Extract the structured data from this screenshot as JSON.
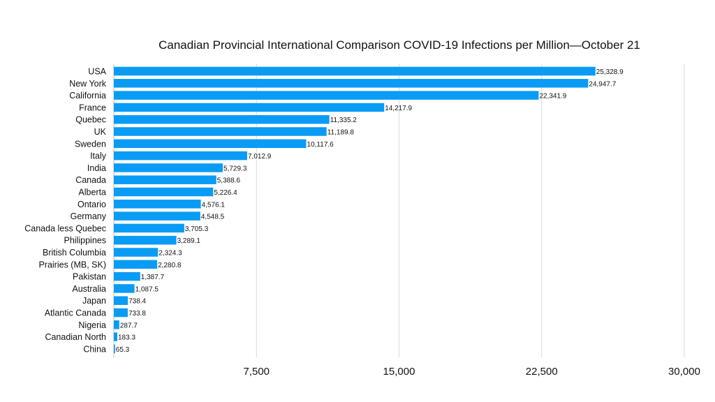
{
  "chart_data": {
    "type": "bar",
    "orientation": "horizontal",
    "title": "Canadian Provincial International Comparison COVID-19 Infections per Million—October 21",
    "xlabel": "",
    "ylabel": "",
    "xlim": [
      0,
      30000
    ],
    "xticks": [
      7500,
      15000,
      22500,
      30000
    ],
    "xtick_labels": [
      "7,500",
      "15,000",
      "22,500",
      "30,000"
    ],
    "grid": "vertical",
    "bar_color": "#0a9cf5",
    "categories": [
      "USA",
      "New York",
      "California",
      "France",
      "Quebec",
      "UK",
      "Sweden",
      "Italy",
      "India",
      "Canada",
      "Alberta",
      "Ontario",
      "Germany",
      "Canada less Quebec",
      "Philippines",
      "British Columbia",
      "Prairies (MB, SK)",
      "Pakistan",
      "Australia",
      "Japan",
      "Atlantic Canada",
      "Nigeria",
      "Canadian North",
      "China"
    ],
    "values": [
      25328.9,
      24947.7,
      22341.9,
      14217.9,
      11335.2,
      11189.8,
      10117.6,
      7012.9,
      5729.3,
      5388.6,
      5226.4,
      4576.1,
      4548.5,
      3705.3,
      3289.1,
      2324.3,
      2280.8,
      1387.7,
      1087.5,
      738.4,
      733.8,
      287.7,
      183.3,
      65.3
    ],
    "value_labels": [
      "25,328.9",
      "24,947.7",
      "22,341.9",
      "14,217.9",
      "11,335.2",
      "11,189.8",
      "10,117.6",
      "7,012.9",
      "5,729.3",
      "5,388.6",
      "5,226.4",
      "4,576.1",
      "4,548.5",
      "3,705.3",
      "3,289.1",
      "2,324.3",
      "2,280.8",
      "1,387.7",
      "1,087.5",
      "738.4",
      "733.8",
      "287.7",
      "183.3",
      "65.3"
    ]
  }
}
